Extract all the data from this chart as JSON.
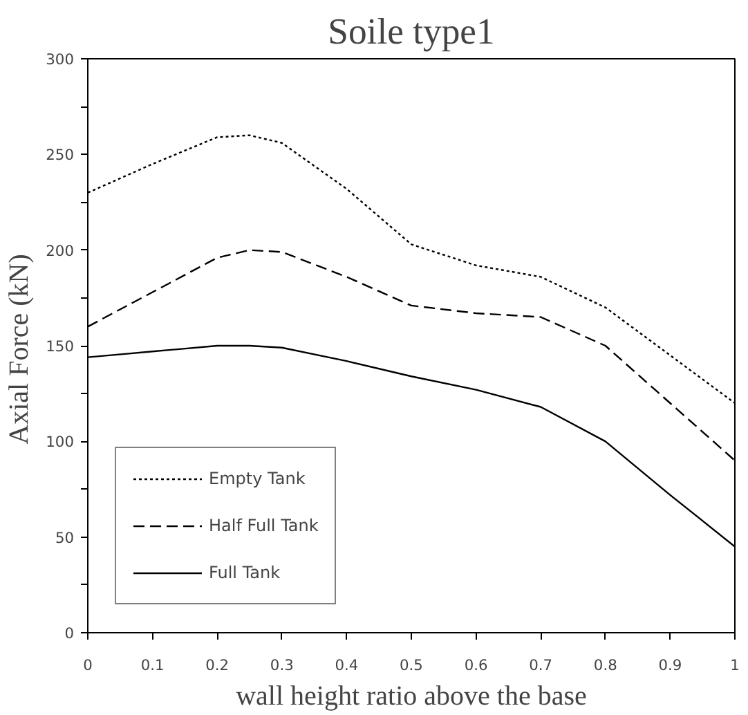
{
  "chart_data": {
    "type": "line",
    "title": "Soile type1",
    "xlabel": "wall height ratio above the base",
    "ylabel": "Axial  Force (kN)",
    "x": [
      0,
      0.1,
      0.2,
      0.25,
      0.3,
      0.4,
      0.5,
      0.6,
      0.7,
      0.8,
      0.9,
      1
    ],
    "series": [
      {
        "name": "Empty Tank",
        "color": "#000000",
        "line_style": "dotted",
        "values": [
          230,
          245,
          259,
          260,
          256,
          232,
          203,
          192,
          186,
          170,
          145,
          120
        ]
      },
      {
        "name": "Half Full Tank",
        "color": "#000000",
        "line_style": "dashed",
        "values": [
          160,
          178,
          196,
          200,
          199,
          186,
          171,
          167,
          165,
          150,
          120,
          90
        ]
      },
      {
        "name": "Full Tank",
        "color": "#000000",
        "line_style": "solid",
        "values": [
          144,
          147,
          150,
          150,
          149,
          142,
          134,
          127,
          118,
          100,
          72,
          45
        ]
      }
    ],
    "xlim": [
      0,
      1
    ],
    "ylim": [
      0,
      300
    ],
    "xticks": [
      0,
      0.1,
      0.2,
      0.3,
      0.4,
      0.5,
      0.6,
      0.7,
      0.8,
      0.9,
      1
    ],
    "yticks": [
      0,
      {
        "value": 25,
        "label": null
      },
      50,
      {
        "value": 75,
        "label": null
      },
      100,
      {
        "value": 125,
        "label": null
      },
      150,
      {
        "value": 175,
        "label": null
      },
      200,
      {
        "value": 225,
        "label": null
      },
      250,
      {
        "value": 275,
        "label": null
      },
      300
    ],
    "grid": false,
    "legend": "bottom left",
    "marker": "none"
  }
}
